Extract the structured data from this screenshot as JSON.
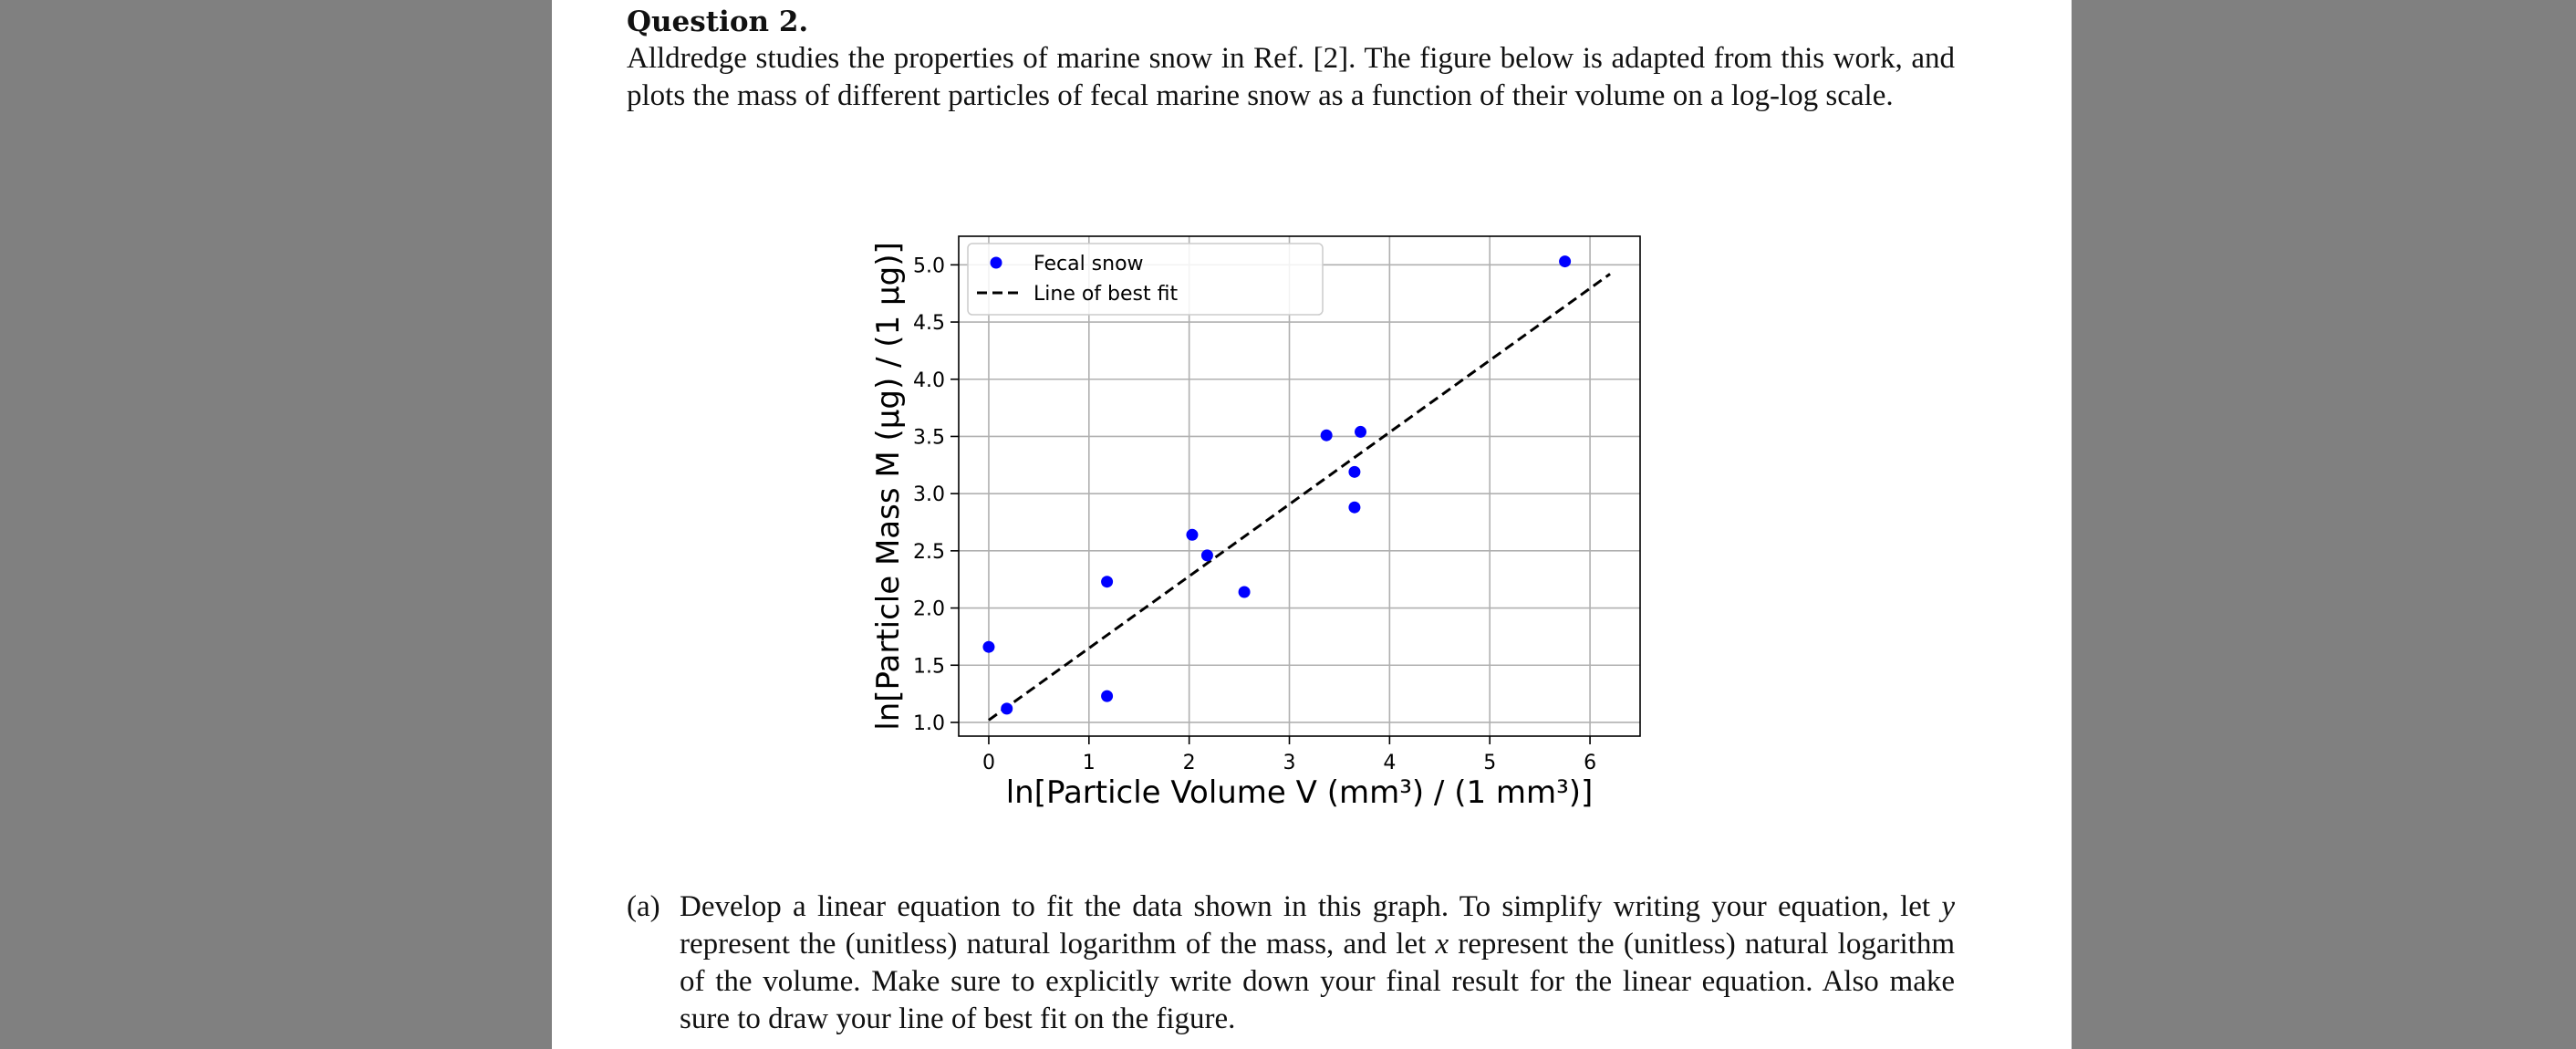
{
  "question": {
    "title": "Question 2.",
    "text": "Alldredge studies the properties of marine snow in Ref. [2]. The figure below is adapted from this work, and plots the mass of different particles of fecal marine snow as a function of their volume on a log-log scale."
  },
  "chart_data": {
    "type": "scatter",
    "xlabel": "ln[Particle Volume V (mm³) / (1 mm³)]",
    "ylabel": "ln[Particle Mass M (μg) / (1 μg)]",
    "xlim": [
      -0.3,
      6.5
    ],
    "ylim": [
      0.88,
      5.25
    ],
    "x_ticks": [
      0,
      1,
      2,
      3,
      4,
      5,
      6
    ],
    "y_ticks": [
      1.0,
      1.5,
      2.0,
      2.5,
      3.0,
      3.5,
      4.0,
      4.5,
      5.0
    ],
    "grid": true,
    "legend_position": "top-left",
    "series": [
      {
        "name": "Fecal snow",
        "type": "scatter",
        "color": "#0000ff",
        "x": [
          0.0,
          0.18,
          1.18,
          1.18,
          2.03,
          2.18,
          2.55,
          3.37,
          3.65,
          3.65,
          3.71,
          5.75
        ],
        "y": [
          1.66,
          1.12,
          2.23,
          1.23,
          2.64,
          2.46,
          2.14,
          3.51,
          2.88,
          3.19,
          3.54,
          5.03
        ]
      },
      {
        "name": "Line of best fit",
        "type": "line",
        "style": "dashed",
        "color": "#000000",
        "x": [
          0.0,
          6.2
        ],
        "y": [
          1.02,
          4.92
        ]
      }
    ]
  },
  "part_a": {
    "label": "(a)",
    "text_1": "Develop a linear equation to fit the data shown in this graph. To simplify writing your equation, let ",
    "var_y": "y",
    "text_2": " represent the (unitless) natural logarithm of the mass, and let ",
    "var_x": "x",
    "text_3": " represent the (unitless) natural logarithm of the volume. Make sure to explicitly write down your final result for the linear equation. Also make sure to draw your line of best fit on the figure."
  },
  "colors": {
    "background": "#808080",
    "page": "#ffffff",
    "points": "#0000ff"
  }
}
